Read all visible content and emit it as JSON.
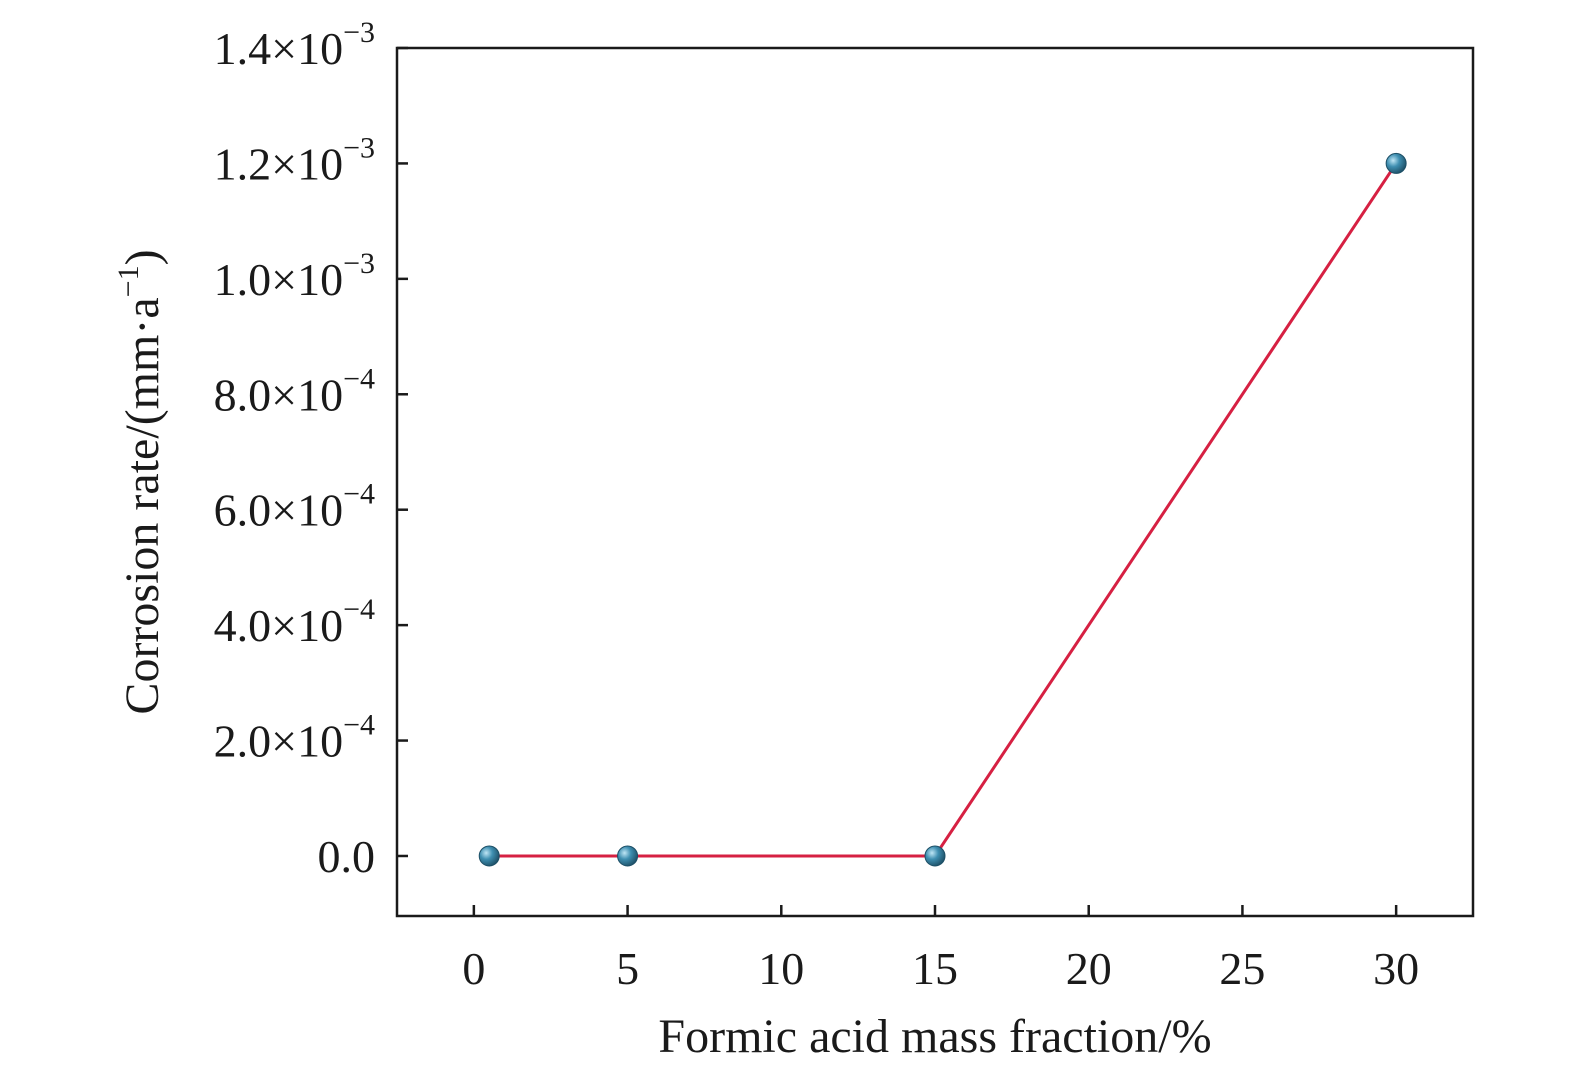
{
  "chart_data": {
    "type": "line",
    "xlabel": "Formic acid mass fraction/%",
    "ylabel": {
      "main": "Corrosion rate/(mm·a",
      "sup": "−1",
      "close": ")"
    },
    "x_ticks": [
      {
        "value": 0,
        "label": "0"
      },
      {
        "value": 5,
        "label": "5"
      },
      {
        "value": 10,
        "label": "10"
      },
      {
        "value": 15,
        "label": "15"
      },
      {
        "value": 20,
        "label": "20"
      },
      {
        "value": 25,
        "label": "25"
      },
      {
        "value": 30,
        "label": "30"
      }
    ],
    "y_ticks": [
      {
        "value": 0.0,
        "label": "0.0",
        "exp": ""
      },
      {
        "value": 0.0002,
        "label": "2.0×10",
        "exp": "−4"
      },
      {
        "value": 0.0004,
        "label": "4.0×10",
        "exp": "−4"
      },
      {
        "value": 0.0006,
        "label": "6.0×10",
        "exp": "−4"
      },
      {
        "value": 0.0008,
        "label": "8.0×10",
        "exp": "−4"
      },
      {
        "value": 0.001,
        "label": "1.0×10",
        "exp": "−3"
      },
      {
        "value": 0.0012,
        "label": "1.2×10",
        "exp": "−3"
      },
      {
        "value": 0.0014,
        "label": "1.4×10",
        "exp": "−3"
      }
    ],
    "xlim": [
      -2.5,
      32.5
    ],
    "ylim": [
      -0.000104,
      0.0014
    ],
    "grid": false,
    "legend": "none",
    "series": [
      {
        "x": [
          0.5,
          5,
          15,
          30
        ],
        "y": [
          0.0,
          0.0,
          0.0,
          0.0012
        ],
        "line_color": "#d62042",
        "marker_color": "#2f7fa0",
        "marker": "sphere"
      }
    ]
  }
}
